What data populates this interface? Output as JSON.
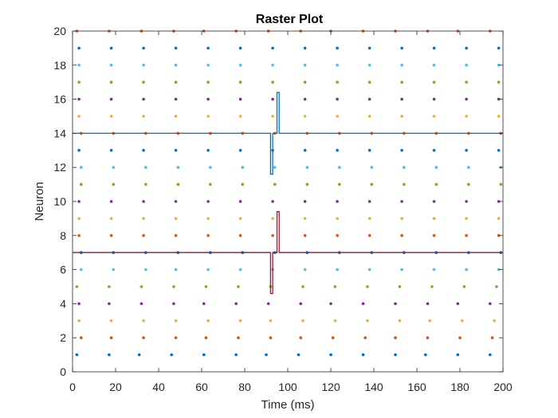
{
  "chart_data": {
    "type": "scatter",
    "title": "Raster Plot",
    "xlabel": "Time (ms)",
    "ylabel": "Neuron",
    "xlim": [
      0,
      200
    ],
    "ylim": [
      0,
      20
    ],
    "xticks": [
      0,
      20,
      40,
      60,
      80,
      100,
      120,
      140,
      160,
      180,
      200
    ],
    "yticks": [
      0,
      2,
      4,
      6,
      8,
      10,
      12,
      14,
      16,
      18,
      20
    ],
    "grid": false,
    "box": true,
    "colors": [
      "#0072BD",
      "#D95319",
      "#EDB120",
      "#7E2F8E",
      "#77AC30",
      "#4DBEEE"
    ],
    "spikes": [
      {
        "neuron": 1,
        "times": [
          2,
          17,
          31,
          46,
          61,
          76,
          90,
          105,
          120,
          135,
          150,
          164,
          179,
          194
        ]
      },
      {
        "neuron": 2,
        "times": [
          4,
          18,
          33,
          48,
          62,
          77,
          92,
          106,
          121,
          136,
          150,
          165,
          180,
          195
        ]
      },
      {
        "neuron": 3,
        "times": [
          3,
          18,
          33,
          48,
          63,
          78,
          92,
          107,
          122,
          137,
          152,
          166,
          181,
          196
        ]
      },
      {
        "neuron": 4,
        "times": [
          3,
          17,
          32,
          47,
          61,
          76,
          91,
          106,
          120,
          135,
          150,
          165,
          179,
          194
        ]
      },
      {
        "neuron": 5,
        "times": [
          2,
          17,
          32,
          47,
          62,
          77,
          92,
          107,
          122,
          137,
          152,
          167,
          182,
          197
        ]
      },
      {
        "neuron": 6,
        "times": [
          4,
          19,
          34,
          48,
          63,
          78,
          93,
          108,
          123,
          138,
          153,
          168,
          183,
          198
        ]
      },
      {
        "neuron": 7,
        "times": [
          4,
          19,
          34,
          49,
          64,
          79,
          94,
          109,
          124,
          139,
          154,
          169,
          184,
          199
        ]
      },
      {
        "neuron": 8,
        "times": [
          3,
          18,
          33,
          48,
          63,
          78,
          93,
          108,
          123,
          138,
          153,
          168,
          183,
          198
        ]
      },
      {
        "neuron": 9,
        "times": [
          3,
          18,
          33,
          48,
          63,
          78,
          93,
          108,
          123,
          138,
          153,
          168,
          183,
          198
        ]
      },
      {
        "neuron": 10,
        "times": [
          3,
          18,
          33,
          48,
          63,
          78,
          93,
          108,
          123,
          138,
          153,
          168,
          183,
          198
        ]
      },
      {
        "neuron": 11,
        "times": [
          4,
          19,
          34,
          49,
          64,
          79,
          94,
          109,
          124,
          139,
          154,
          169,
          184,
          199
        ]
      },
      {
        "neuron": 12,
        "times": [
          4,
          19,
          34,
          49,
          64,
          79,
          94,
          109,
          124,
          139,
          154,
          169,
          184,
          199
        ]
      },
      {
        "neuron": 13,
        "times": [
          3,
          18,
          33,
          48,
          63,
          78,
          93,
          108,
          123,
          138,
          153,
          168,
          183,
          198
        ]
      },
      {
        "neuron": 14,
        "times": [
          4,
          19,
          34,
          49,
          64,
          79,
          94,
          109,
          124,
          139,
          154,
          169,
          184,
          199
        ]
      },
      {
        "neuron": 15,
        "times": [
          3,
          18,
          33,
          48,
          63,
          78,
          93,
          108,
          123,
          138,
          153,
          168,
          183,
          198
        ]
      },
      {
        "neuron": 16,
        "times": [
          3,
          18,
          33,
          48,
          63,
          78,
          93,
          108,
          123,
          138,
          153,
          168,
          183,
          198
        ]
      },
      {
        "neuron": 17,
        "times": [
          3,
          18,
          33,
          48,
          63,
          78,
          93,
          108,
          123,
          138,
          153,
          168,
          183,
          198
        ]
      },
      {
        "neuron": 18,
        "times": [
          3,
          18,
          33,
          48,
          63,
          78,
          93,
          108,
          123,
          138,
          153,
          168,
          183,
          198
        ]
      },
      {
        "neuron": 19,
        "times": [
          3,
          18,
          33,
          48,
          63,
          78,
          93,
          108,
          123,
          138,
          153,
          168,
          183,
          198
        ]
      },
      {
        "neuron": 20,
        "times": [
          2,
          17,
          32,
          47,
          61,
          76,
          91,
          106,
          120,
          135,
          150,
          165,
          179,
          194
        ]
      }
    ],
    "series": [
      {
        "name": "",
        "color": "#0072BD",
        "points": [
          [
            0,
            14
          ],
          [
            92,
            14
          ],
          [
            92,
            11.6
          ],
          [
            93,
            11.6
          ],
          [
            93,
            14
          ],
          [
            95,
            14
          ],
          [
            95,
            16.4
          ],
          [
            96,
            16.4
          ],
          [
            96,
            14
          ],
          [
            200,
            14
          ]
        ]
      },
      {
        "name": "",
        "color": "#A2142F",
        "points": [
          [
            0,
            7
          ],
          [
            92,
            7
          ],
          [
            92,
            4.6
          ],
          [
            93,
            4.6
          ],
          [
            93,
            7
          ],
          [
            95,
            7
          ],
          [
            95,
            9.4
          ],
          [
            96,
            9.4
          ],
          [
            96,
            7
          ],
          [
            200,
            7
          ]
        ]
      }
    ]
  }
}
